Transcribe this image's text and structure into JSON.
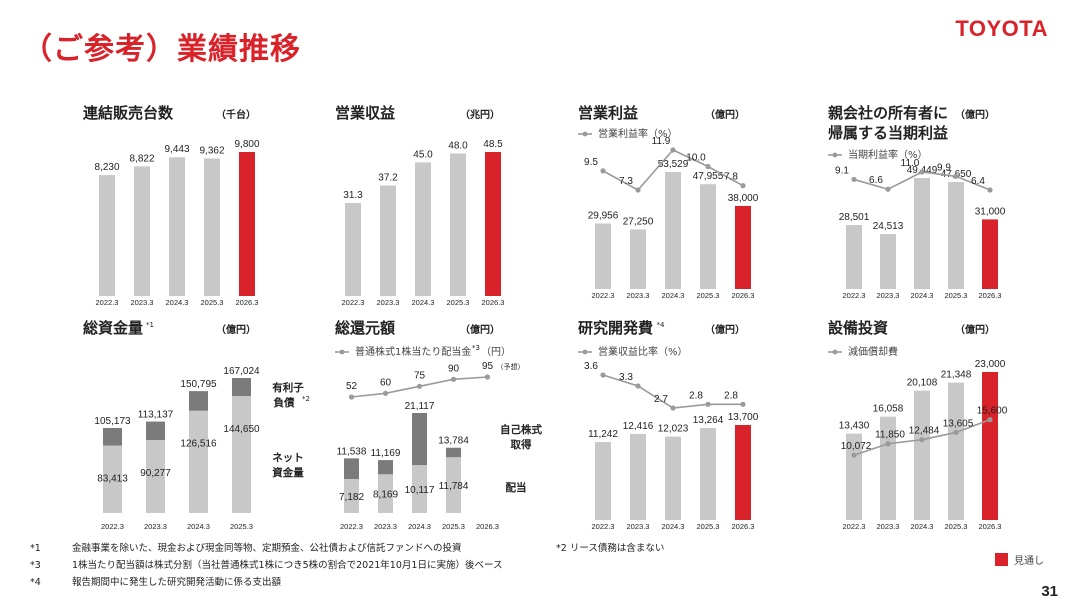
{
  "header": {
    "title": "（ご参考）業績推移",
    "logo": "TOYOTA"
  },
  "colors": {
    "accent": "#d9232a",
    "bar": "#c8c8c8",
    "dark": "#7b7b7b",
    "line": "#9a9a9a"
  },
  "page_number": "31",
  "legend_forecast": "見通し",
  "footnotes": {
    "n1_mark": "*1",
    "n1": "金融事業を除いた、現金および現金同等物、定期預金、公社債および信託ファンドへの投資",
    "n2": "*2 リース債務は含まない",
    "n3_mark": "*3",
    "n3": "1株当たり配当額は株式分割（当社普通株式1株につき5株の割合で2021年10月1日に実施）後ベース",
    "n4_mark": "*4",
    "n4": "報告期間中に発生した研究開発活動に係る支出額"
  },
  "chart_data": [
    {
      "id": "sales",
      "type": "bar",
      "title": "連結販売台数",
      "unit": "（千台）",
      "categories": [
        "2022.3",
        "2023.3",
        "2024.3",
        "2025.3",
        "2026.3"
      ],
      "values": [
        8230,
        8822,
        9443,
        9362,
        9800
      ],
      "labels": [
        "8,230",
        "8,822",
        "9,443",
        "9,362",
        "9,800"
      ],
      "highlight_last": true
    },
    {
      "id": "revenue",
      "type": "bar",
      "title": "営業収益",
      "unit": "（兆円）",
      "categories": [
        "2022.3",
        "2023.3",
        "2024.3",
        "2025.3",
        "2026.3"
      ],
      "values": [
        31.3,
        37.2,
        45.0,
        48.0,
        48.5
      ],
      "labels": [
        "31.3",
        "37.2",
        "45.0",
        "48.0",
        "48.5"
      ],
      "highlight_last": true
    },
    {
      "id": "op_income",
      "type": "bar",
      "title": "営業利益",
      "unit": "（億円）",
      "categories": [
        "2022.3",
        "2023.3",
        "2024.3",
        "2025.3",
        "2026.3"
      ],
      "values": [
        29956,
        27250,
        53529,
        47955,
        38000
      ],
      "labels": [
        "29,956",
        "27,250",
        "53,529",
        "47,955",
        "38,000"
      ],
      "highlight_last": true,
      "line": {
        "name": "営業利益率（%）",
        "values": [
          9.5,
          7.3,
          11.9,
          10.0,
          7.8
        ],
        "labels": [
          "9.5",
          "7.3",
          "11.9",
          "10.0",
          "7.8"
        ]
      }
    },
    {
      "id": "net_income",
      "type": "bar",
      "title_lines": [
        "親会社の所有者に",
        "帰属する当期利益"
      ],
      "unit": "（億円）",
      "categories": [
        "2022.3",
        "2023.3",
        "2024.3",
        "2025.3",
        "2026.3"
      ],
      "values": [
        28501,
        24513,
        49449,
        47650,
        31000
      ],
      "labels": [
        "28,501",
        "24,513",
        "49,449",
        "47,650",
        "31,000"
      ],
      "highlight_last": true,
      "line": {
        "name": "当期利益率（%）",
        "values": [
          9.1,
          6.6,
          11.0,
          9.9,
          6.4
        ],
        "labels": [
          "9.1",
          "6.6",
          "11.0",
          "9.9",
          "6.4"
        ]
      }
    },
    {
      "id": "liquidity",
      "type": "stacked_bar",
      "title": "総資金量",
      "title_sup": "*1",
      "unit": "（億円）",
      "categories": [
        "2022.3",
        "2023.3",
        "2024.3",
        "2025.3"
      ],
      "totals": [
        105173,
        113137,
        150795,
        167024
      ],
      "total_labels": [
        "105,173",
        "113,137",
        "150,795",
        "167,024"
      ],
      "series": [
        {
          "name": "ネット資金量",
          "values": [
            83413,
            90277,
            126516,
            144650
          ],
          "labels": [
            "83,413",
            "90,277",
            "126,516",
            "144,650"
          ]
        }
      ],
      "side_labels": {
        "top": "有利子",
        "top2": "負債",
        "top_sup": "*2",
        "bottom": "ネット",
        "bottom2": "資金量"
      }
    },
    {
      "id": "shareholder_return",
      "type": "stacked_bar",
      "title": "総還元額",
      "unit": "（億円）",
      "categories": [
        "2022.3",
        "2023.3",
        "2024.3",
        "2025.3",
        "2026.3"
      ],
      "totals": [
        11538,
        11169,
        21117,
        13784,
        null
      ],
      "total_labels": [
        "11,538",
        "11,169",
        "21,117",
        "13,784",
        ""
      ],
      "series": [
        {
          "name": "配当",
          "values": [
            7182,
            8169,
            10117,
            11784,
            null
          ],
          "labels": [
            "7,182",
            "8,169",
            "10,117",
            "11,784",
            ""
          ]
        }
      ],
      "line": {
        "name": "普通株式1株当たり配当金",
        "sup": "*3",
        "suffix": "（円）",
        "values": [
          52,
          60,
          75,
          90,
          95
        ],
        "labels": [
          "52",
          "60",
          "75",
          "90",
          "95"
        ],
        "last_note": "（予想）"
      },
      "side_labels": {
        "top": "自己株式",
        "top2": "取得",
        "bottom": "配当"
      }
    },
    {
      "id": "rnd",
      "type": "bar",
      "title": "研究開発費",
      "title_sup": "*4",
      "unit": "（億円）",
      "categories": [
        "2022.3",
        "2023.3",
        "2024.3",
        "2025.3",
        "2026.3"
      ],
      "values": [
        11242,
        12416,
        12023,
        13264,
        13700
      ],
      "labels": [
        "11,242",
        "12,416",
        "12,023",
        "13,264",
        "13,700"
      ],
      "highlight_last": true,
      "line": {
        "name": "営業収益比率（%）",
        "values": [
          3.6,
          3.3,
          2.7,
          2.8,
          2.8
        ],
        "labels": [
          "3.6",
          "3.3",
          "2.7",
          "2.8",
          "2.8"
        ]
      }
    },
    {
      "id": "capex",
      "type": "bar",
      "title": "設備投資",
      "unit": "（億円）",
      "categories": [
        "2022.3",
        "2023.3",
        "2024.3",
        "2025.3",
        "2026.3"
      ],
      "values": [
        13430,
        16058,
        20108,
        21348,
        23000
      ],
      "labels": [
        "13,430",
        "16,058",
        "20,108",
        "21,348",
        "23,000"
      ],
      "highlight_last": true,
      "line": {
        "name": "減価償却費",
        "values": [
          10072,
          11850,
          12484,
          13605,
          15600
        ],
        "labels": [
          "10,072",
          "11,850",
          "12,484",
          "13,605",
          "15,600"
        ]
      }
    }
  ]
}
